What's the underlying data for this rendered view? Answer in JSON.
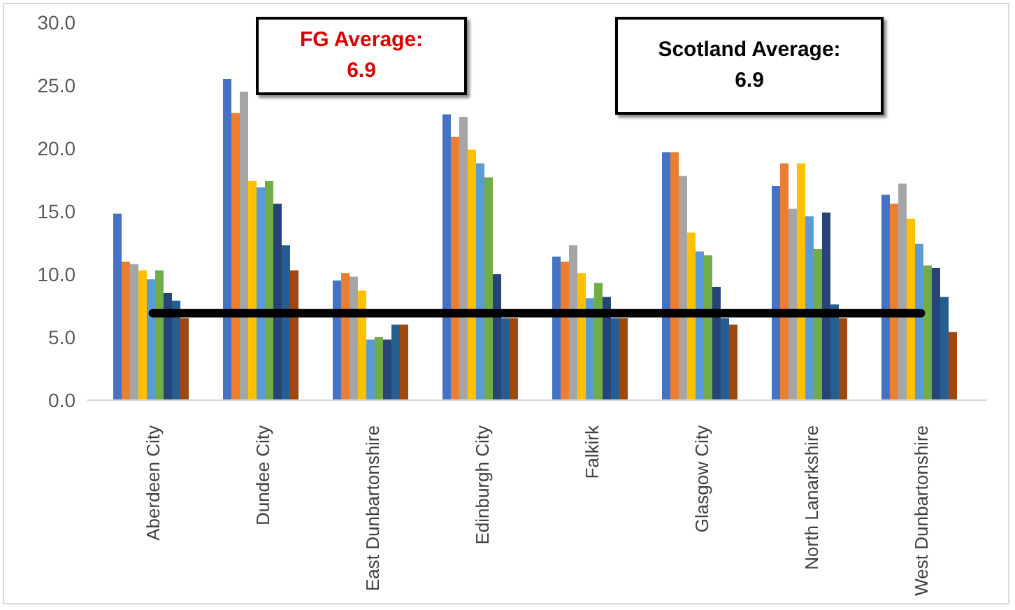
{
  "chart_data": {
    "type": "bar",
    "categories": [
      "Aberdeen City",
      "Dundee City",
      "East Dunbartonshire",
      "Edinburgh City",
      "Falkirk",
      "Glasgow City",
      "North Lanarkshire",
      "West Dunbartonshire"
    ],
    "series": [
      {
        "color": "#4472c4",
        "values": [
          14.8,
          25.5,
          9.5,
          22.7,
          11.4,
          19.7,
          17.0,
          16.3
        ]
      },
      {
        "color": "#ed7d31",
        "values": [
          11.0,
          22.8,
          10.1,
          20.9,
          11.0,
          19.7,
          18.8,
          15.6
        ]
      },
      {
        "color": "#a5a5a5",
        "values": [
          10.8,
          24.5,
          9.8,
          22.5,
          12.3,
          17.8,
          15.2,
          17.2
        ]
      },
      {
        "color": "#ffc000",
        "values": [
          10.3,
          17.4,
          8.7,
          19.9,
          10.1,
          13.3,
          18.8,
          14.4
        ]
      },
      {
        "color": "#5b9bd5",
        "values": [
          9.6,
          16.9,
          4.8,
          18.8,
          8.1,
          11.8,
          14.6,
          12.4
        ]
      },
      {
        "color": "#70ad47",
        "values": [
          10.3,
          17.4,
          5.0,
          17.7,
          9.3,
          11.5,
          12.0,
          10.7
        ]
      },
      {
        "color": "#264478",
        "values": [
          8.5,
          15.6,
          4.8,
          10.0,
          8.2,
          9.0,
          14.9,
          10.5
        ]
      },
      {
        "color": "#255e91",
        "values": [
          7.9,
          12.3,
          6.0,
          6.5,
          6.5,
          6.5,
          7.6,
          8.2
        ]
      },
      {
        "color": "#9e480e",
        "values": [
          6.5,
          10.3,
          6.0,
          6.5,
          6.5,
          6.0,
          6.5,
          5.4
        ]
      }
    ],
    "ylim": [
      0,
      30
    ],
    "yticks": [
      {
        "value": 0,
        "label": "0.0"
      },
      {
        "value": 5,
        "label": "5.0"
      },
      {
        "value": 10,
        "label": "10.0"
      },
      {
        "value": 15,
        "label": "15.0"
      },
      {
        "value": 20,
        "label": "20.0"
      },
      {
        "value": 25,
        "label": "25.0"
      },
      {
        "value": 30,
        "label": "30.0"
      }
    ],
    "ref_lines": [
      {
        "axis": "y",
        "value": 6.9,
        "color": "#000000"
      }
    ],
    "annotations": [
      "FG Average:\n6.9",
      "Scotland Average:\n6.9"
    ],
    "grid": false,
    "legend": false
  }
}
